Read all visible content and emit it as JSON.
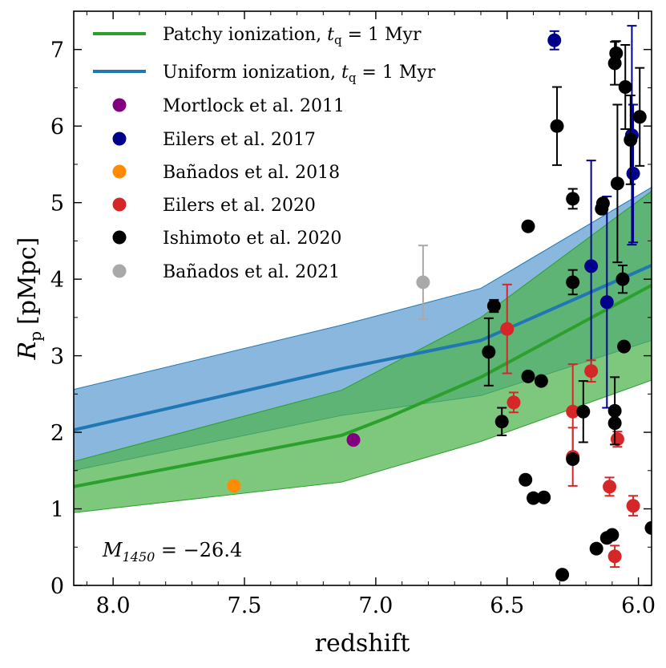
{
  "chart_data": {
    "type": "scatter",
    "xlabel": "redshift",
    "ylabel_main": "R",
    "ylabel_sub": "p",
    "ylabel_unit": "[pMpc]",
    "xlim": [
      8.15,
      5.95
    ],
    "ylim": [
      0,
      7.5
    ],
    "x_ticks": [
      8.0,
      7.5,
      7.0,
      6.5,
      6.0
    ],
    "x_tick_labels": [
      "8.0",
      "7.5",
      "7.0",
      "6.5",
      "6.0"
    ],
    "y_ticks": [
      0,
      1,
      2,
      3,
      4,
      5,
      6,
      7
    ],
    "y_tick_labels": [
      "0",
      "1",
      "2",
      "3",
      "4",
      "5",
      "6",
      "7"
    ],
    "annotation": {
      "main": "M",
      "sub": "1450",
      "rest": " = −26.4"
    },
    "colors": {
      "patchy": "#2ca02c",
      "uniform": "#1f77b4",
      "patchy_band": "#4cb34c",
      "uniform_band": "#5b9bd0"
    },
    "bands": [
      {
        "name": "Uniform band",
        "x": [
          8.15,
          7.13,
          6.6,
          5.95
        ],
        "lower": [
          1.5,
          2.22,
          2.48,
          3.2
        ],
        "upper": [
          2.56,
          3.4,
          3.88,
          5.2
        ]
      },
      {
        "name": "Patchy band",
        "x": [
          8.15,
          7.13,
          6.6,
          5.95
        ],
        "lower": [
          0.95,
          1.35,
          1.88,
          2.68
        ],
        "upper": [
          1.62,
          2.55,
          3.5,
          5.15
        ]
      }
    ],
    "series_lines": [
      {
        "name": "Uniform ionization",
        "x": [
          8.15,
          7.13,
          6.6,
          5.95
        ],
        "y": [
          2.03,
          2.83,
          3.2,
          4.18
        ]
      },
      {
        "name": "Patchy ionization",
        "x": [
          8.15,
          7.13,
          6.95,
          6.6,
          5.95
        ],
        "y": [
          1.29,
          1.96,
          2.2,
          2.72,
          3.92
        ]
      }
    ],
    "legend": [
      {
        "kind": "line",
        "color": "#2ca02c",
        "text": "Patchy ionization, ",
        "math": "t",
        "sub": "q",
        "tail": " = 1 Myr"
      },
      {
        "kind": "line",
        "color": "#1f77b4",
        "text": "Uniform ionization, ",
        "math": "t",
        "sub": "q",
        "tail": " = 1 Myr"
      },
      {
        "kind": "marker",
        "color": "#800080",
        "text": "Mortlock et al. 2011"
      },
      {
        "kind": "marker",
        "color": "#00008b",
        "text": "Eilers et al. 2017"
      },
      {
        "kind": "marker",
        "color": "#ff8c00",
        "text": "Bañados et al. 2018"
      },
      {
        "kind": "marker",
        "color": "#d62728",
        "text": "Eilers et al. 2020"
      },
      {
        "kind": "marker",
        "color": "#000000",
        "text": "Ishimoto et al. 2020"
      },
      {
        "kind": "marker",
        "color": "#a9a9a9",
        "text": "Bañados et al. 2021"
      }
    ],
    "points": [
      {
        "series": "Mortlock et al. 2011",
        "color": "#800080",
        "x": 7.085,
        "y": 1.9,
        "err": 0
      },
      {
        "series": "Bañados et al. 2018",
        "color": "#ff8c00",
        "x": 7.54,
        "y": 1.3,
        "err": 0
      },
      {
        "series": "Bañados et al. 2021",
        "color": "#a9a9a9",
        "x": 6.82,
        "y": 3.96,
        "err": 0.48
      },
      {
        "series": "Eilers et al. 2017",
        "color": "#00008b",
        "x": 6.32,
        "y": 7.12,
        "err": 0.12
      },
      {
        "series": "Eilers et al. 2017",
        "color": "#00008b",
        "x": 6.18,
        "y": 4.17,
        "err": 1.38
      },
      {
        "series": "Eilers et al. 2017",
        "color": "#00008b",
        "x": 6.12,
        "y": 3.7,
        "err": 1.38
      },
      {
        "series": "Eilers et al. 2017",
        "color": "#00008b",
        "x": 6.02,
        "y": 5.38,
        "err": 0.9
      },
      {
        "series": "Eilers et al. 2017",
        "color": "#00008b",
        "x": 6.025,
        "y": 5.88,
        "err": 1.43
      },
      {
        "series": "Eilers et al. 2020",
        "color": "#d62728",
        "x": 6.5,
        "y": 3.35,
        "err": 0.58
      },
      {
        "series": "Eilers et al. 2020",
        "color": "#d62728",
        "x": 6.475,
        "y": 2.39,
        "err": 0.13
      },
      {
        "series": "Eilers et al. 2020",
        "color": "#d62728",
        "x": 6.25,
        "y": 2.27,
        "err": 0.62
      },
      {
        "series": "Eilers et al. 2020",
        "color": "#d62728",
        "x": 6.25,
        "y": 1.68,
        "err": 0.38
      },
      {
        "series": "Eilers et al. 2020",
        "color": "#d62728",
        "x": 6.18,
        "y": 2.8,
        "err": 0.14
      },
      {
        "series": "Eilers et al. 2020",
        "color": "#d62728",
        "x": 6.11,
        "y": 1.29,
        "err": 0.12
      },
      {
        "series": "Eilers et al. 2020",
        "color": "#d62728",
        "x": 6.08,
        "y": 1.91,
        "err": 0.1
      },
      {
        "series": "Eilers et al. 2020",
        "color": "#d62728",
        "x": 6.09,
        "y": 0.38,
        "err": 0.14
      },
      {
        "series": "Eilers et al. 2020",
        "color": "#d62728",
        "x": 6.02,
        "y": 1.04,
        "err": 0.13
      },
      {
        "series": "Ishimoto et al. 2020",
        "color": "#000000",
        "x": 6.57,
        "y": 3.05,
        "err": 0.44
      },
      {
        "series": "Ishimoto et al. 2020",
        "color": "#000000",
        "x": 6.55,
        "y": 3.65,
        "err": 0.08
      },
      {
        "series": "Ishimoto et al. 2020",
        "color": "#000000",
        "x": 6.52,
        "y": 2.14,
        "err": 0.18
      },
      {
        "series": "Ishimoto et al. 2020",
        "color": "#000000",
        "x": 6.43,
        "y": 1.38,
        "err": 0
      },
      {
        "series": "Ishimoto et al. 2020",
        "color": "#000000",
        "x": 6.42,
        "y": 4.69,
        "err": 0
      },
      {
        "series": "Ishimoto et al. 2020",
        "color": "#000000",
        "x": 6.42,
        "y": 2.73,
        "err": 0
      },
      {
        "series": "Ishimoto et al. 2020",
        "color": "#000000",
        "x": 6.4,
        "y": 1.14,
        "err": 0
      },
      {
        "series": "Ishimoto et al. 2020",
        "color": "#000000",
        "x": 6.37,
        "y": 2.67,
        "err": 0
      },
      {
        "series": "Ishimoto et al. 2020",
        "color": "#000000",
        "x": 6.36,
        "y": 1.15,
        "err": 0
      },
      {
        "series": "Ishimoto et al. 2020",
        "color": "#000000",
        "x": 6.31,
        "y": 6.0,
        "err": 0.51
      },
      {
        "series": "Ishimoto et al. 2020",
        "color": "#000000",
        "x": 6.29,
        "y": 0.14,
        "err": 0
      },
      {
        "series": "Ishimoto et al. 2020",
        "color": "#000000",
        "x": 6.25,
        "y": 5.05,
        "err": 0.13
      },
      {
        "series": "Ishimoto et al. 2020",
        "color": "#000000",
        "x": 6.25,
        "y": 3.96,
        "err": 0.16
      },
      {
        "series": "Ishimoto et al. 2020",
        "color": "#000000",
        "x": 6.25,
        "y": 1.65,
        "err": 0
      },
      {
        "series": "Ishimoto et al. 2020",
        "color": "#000000",
        "x": 6.21,
        "y": 2.27,
        "err": 0.4
      },
      {
        "series": "Ishimoto et al. 2020",
        "color": "#000000",
        "x": 6.16,
        "y": 0.48,
        "err": 0
      },
      {
        "series": "Ishimoto et al. 2020",
        "color": "#000000",
        "x": 6.14,
        "y": 4.92,
        "err": 0
      },
      {
        "series": "Ishimoto et al. 2020",
        "color": "#000000",
        "x": 6.135,
        "y": 4.99,
        "err": 0
      },
      {
        "series": "Ishimoto et al. 2020",
        "color": "#000000",
        "x": 6.12,
        "y": 0.62,
        "err": 0
      },
      {
        "series": "Ishimoto et al. 2020",
        "color": "#000000",
        "x": 6.1,
        "y": 0.66,
        "err": 0
      },
      {
        "series": "Ishimoto et al. 2020",
        "color": "#000000",
        "x": 6.09,
        "y": 6.82,
        "err": 0.28
      },
      {
        "series": "Ishimoto et al. 2020",
        "color": "#000000",
        "x": 6.085,
        "y": 6.95,
        "err": 0.16
      },
      {
        "series": "Ishimoto et al. 2020",
        "color": "#000000",
        "x": 6.09,
        "y": 2.28,
        "err": 0.44
      },
      {
        "series": "Ishimoto et al. 2020",
        "color": "#000000",
        "x": 6.09,
        "y": 2.12,
        "err": 0
      },
      {
        "series": "Ishimoto et al. 2020",
        "color": "#000000",
        "x": 6.08,
        "y": 5.25,
        "err": 1.03
      },
      {
        "series": "Ishimoto et al. 2020",
        "color": "#000000",
        "x": 6.06,
        "y": 4.0,
        "err": 0.18
      },
      {
        "series": "Ishimoto et al. 2020",
        "color": "#000000",
        "x": 6.05,
        "y": 6.51,
        "err": 0.55
      },
      {
        "series": "Ishimoto et al. 2020",
        "color": "#000000",
        "x": 6.055,
        "y": 3.12,
        "err": 0
      },
      {
        "series": "Ishimoto et al. 2020",
        "color": "#000000",
        "x": 6.03,
        "y": 5.82,
        "err": 0.58
      },
      {
        "series": "Ishimoto et al. 2020",
        "color": "#000000",
        "x": 5.995,
        "y": 6.12,
        "err": 0.64
      },
      {
        "series": "Ishimoto et al. 2020",
        "color": "#000000",
        "x": 5.95,
        "y": 0.75,
        "err": 0
      }
    ]
  }
}
